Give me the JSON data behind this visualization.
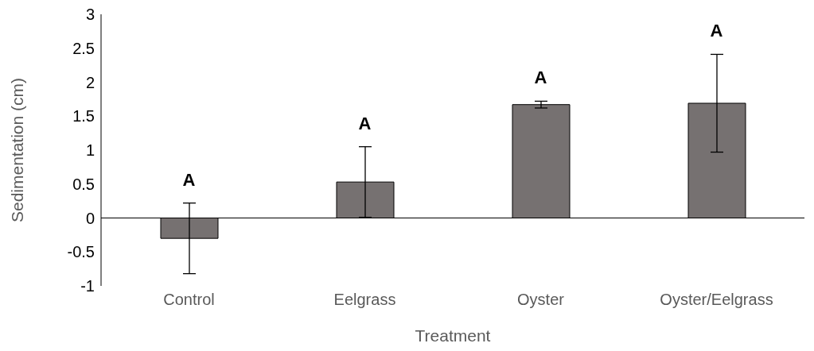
{
  "chart_data": {
    "type": "bar",
    "xlabel": "Treatment",
    "ylabel": "Sedimentation (cm)",
    "categories": [
      "Control",
      "Eelgrass",
      "Oyster",
      "Oyster/Eelgrass"
    ],
    "values": [
      -0.3,
      0.53,
      1.67,
      1.69
    ],
    "errors": [
      0.52,
      0.52,
      0.05,
      0.72
    ],
    "color": "#767171",
    "ylim": [
      -1,
      3
    ],
    "yticks": [
      -1,
      -0.5,
      0,
      0.5,
      1,
      1.5,
      2,
      2.5,
      3
    ],
    "annotations": [
      "A",
      "A",
      "A",
      "A"
    ]
  }
}
